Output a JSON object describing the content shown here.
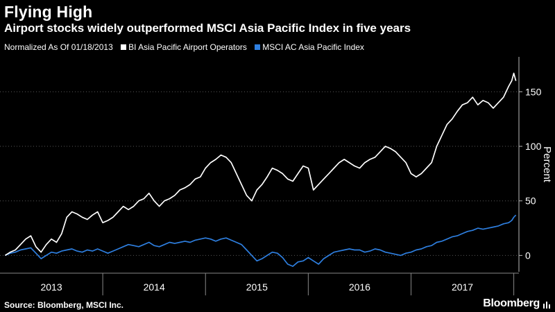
{
  "header": {
    "title": "Flying High",
    "subtitle": "Airport stocks widely outperformed MSCI Asia Pacific Index in five years"
  },
  "legend": {
    "note": "Normalized As Of 01/18/2013",
    "items": [
      {
        "label": "BI Asia Pacific Airport Operators",
        "color": "#ffffff"
      },
      {
        "label": "MSCI AC Asia Pacific Index",
        "color": "#2e7fe0"
      }
    ]
  },
  "footer": {
    "source": "Source: Bloomberg, MSCI Inc.",
    "brand": "Bloomberg",
    "brand_icon": "bloomberg-bars-icon"
  },
  "chart_data": {
    "type": "line",
    "xlabel": "",
    "ylabel": "Percent",
    "x_domain": [
      2013.0,
      2018.05
    ],
    "ylim": [
      -15,
      182
    ],
    "y_ticks": [
      0,
      50,
      100,
      150
    ],
    "year_labels": [
      "2013",
      "2014",
      "2015",
      "2016",
      "2017"
    ],
    "grid": true,
    "series": [
      {
        "name": "BI Asia Pacific Airport Operators",
        "color": "#ffffff",
        "x": [
          2013.05,
          2013.1,
          2013.15,
          2013.2,
          2013.25,
          2013.3,
          2013.35,
          2013.4,
          2013.45,
          2013.5,
          2013.55,
          2013.6,
          2013.65,
          2013.7,
          2013.75,
          2013.8,
          2013.85,
          2013.9,
          2013.95,
          2014.0,
          2014.05,
          2014.1,
          2014.15,
          2014.2,
          2014.25,
          2014.3,
          2014.35,
          2014.4,
          2014.45,
          2014.5,
          2014.55,
          2014.6,
          2014.65,
          2014.7,
          2014.75,
          2014.8,
          2014.85,
          2014.9,
          2014.95,
          2015.0,
          2015.05,
          2015.1,
          2015.15,
          2015.2,
          2015.25,
          2015.3,
          2015.35,
          2015.4,
          2015.45,
          2015.5,
          2015.55,
          2015.6,
          2015.65,
          2015.7,
          2015.75,
          2015.8,
          2015.85,
          2015.9,
          2015.95,
          2016.0,
          2016.05,
          2016.1,
          2016.15,
          2016.2,
          2016.25,
          2016.3,
          2016.35,
          2016.4,
          2016.45,
          2016.5,
          2016.55,
          2016.6,
          2016.65,
          2016.7,
          2016.75,
          2016.8,
          2016.85,
          2016.9,
          2016.95,
          2017.0,
          2017.05,
          2017.1,
          2017.15,
          2017.2,
          2017.25,
          2017.3,
          2017.35,
          2017.4,
          2017.45,
          2017.5,
          2017.55,
          2017.6,
          2017.65,
          2017.7,
          2017.75,
          2017.8,
          2017.85,
          2017.9,
          2017.95,
          2017.98,
          2018.0,
          2018.02
        ],
        "values": [
          0,
          3,
          5,
          10,
          15,
          18,
          8,
          3,
          10,
          15,
          12,
          20,
          35,
          40,
          38,
          35,
          33,
          37,
          40,
          30,
          32,
          35,
          40,
          45,
          42,
          45,
          50,
          52,
          57,
          50,
          45,
          50,
          52,
          55,
          60,
          62,
          65,
          70,
          72,
          80,
          85,
          88,
          92,
          90,
          85,
          75,
          65,
          55,
          50,
          60,
          65,
          72,
          80,
          78,
          75,
          70,
          68,
          75,
          82,
          80,
          60,
          65,
          70,
          75,
          80,
          85,
          88,
          85,
          82,
          80,
          85,
          88,
          90,
          95,
          100,
          98,
          95,
          90,
          85,
          75,
          72,
          75,
          80,
          85,
          100,
          110,
          120,
          125,
          132,
          138,
          140,
          145,
          138,
          142,
          140,
          135,
          140,
          145,
          155,
          160,
          167,
          160
        ]
      },
      {
        "name": "MSCI AC Asia Pacific Index",
        "color": "#2e7fe0",
        "x": [
          2013.05,
          2013.1,
          2013.15,
          2013.2,
          2013.25,
          2013.3,
          2013.35,
          2013.4,
          2013.45,
          2013.5,
          2013.55,
          2013.6,
          2013.65,
          2013.7,
          2013.75,
          2013.8,
          2013.85,
          2013.9,
          2013.95,
          2014.0,
          2014.05,
          2014.1,
          2014.15,
          2014.2,
          2014.25,
          2014.3,
          2014.35,
          2014.4,
          2014.45,
          2014.5,
          2014.55,
          2014.6,
          2014.65,
          2014.7,
          2014.75,
          2014.8,
          2014.85,
          2014.9,
          2014.95,
          2015.0,
          2015.05,
          2015.1,
          2015.15,
          2015.2,
          2015.25,
          2015.3,
          2015.35,
          2015.4,
          2015.45,
          2015.5,
          2015.55,
          2015.6,
          2015.65,
          2015.7,
          2015.75,
          2015.8,
          2015.85,
          2015.9,
          2015.95,
          2016.0,
          2016.05,
          2016.1,
          2016.15,
          2016.2,
          2016.25,
          2016.3,
          2016.35,
          2016.4,
          2016.45,
          2016.5,
          2016.55,
          2016.6,
          2016.65,
          2016.7,
          2016.75,
          2016.8,
          2016.85,
          2016.9,
          2016.95,
          2017.0,
          2017.05,
          2017.1,
          2017.15,
          2017.2,
          2017.25,
          2017.3,
          2017.35,
          2017.4,
          2017.45,
          2017.5,
          2017.55,
          2017.6,
          2017.65,
          2017.7,
          2017.75,
          2017.8,
          2017.85,
          2017.9,
          2017.95,
          2017.98,
          2018.0,
          2018.02
        ],
        "values": [
          0,
          2,
          3,
          5,
          6,
          7,
          2,
          -3,
          0,
          3,
          2,
          4,
          5,
          6,
          4,
          3,
          5,
          4,
          6,
          4,
          2,
          4,
          6,
          8,
          10,
          9,
          8,
          10,
          12,
          9,
          8,
          10,
          12,
          11,
          12,
          13,
          12,
          14,
          15,
          16,
          15,
          13,
          15,
          16,
          14,
          12,
          10,
          5,
          0,
          -5,
          -3,
          0,
          3,
          2,
          -2,
          -8,
          -10,
          -6,
          -5,
          -2,
          -5,
          -8,
          -3,
          0,
          3,
          4,
          5,
          6,
          5,
          5,
          3,
          4,
          6,
          5,
          3,
          2,
          1,
          0,
          2,
          3,
          5,
          6,
          8,
          9,
          12,
          13,
          15,
          17,
          18,
          20,
          22,
          23,
          25,
          24,
          25,
          26,
          27,
          29,
          30,
          32,
          35,
          37
        ]
      }
    ]
  }
}
